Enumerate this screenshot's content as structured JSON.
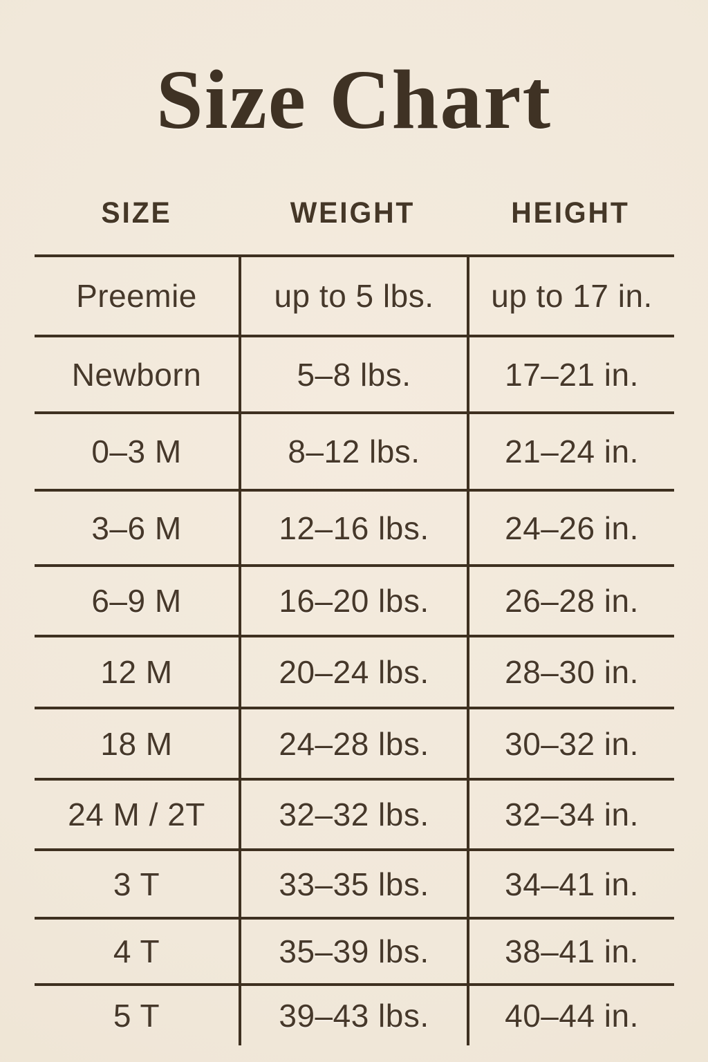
{
  "page": {
    "title": "Size Chart",
    "background_color": "#f1e8da",
    "ink_color": "#46382a",
    "line_color": "#3e3020"
  },
  "chart_data": {
    "type": "table",
    "title": "Size Chart",
    "columns": [
      "SIZE",
      "WEIGHT",
      "HEIGHT"
    ],
    "rows": [
      [
        "Preemie",
        "up to 5 lbs.",
        "up to 17 in."
      ],
      [
        "Newborn",
        "5–8 lbs.",
        "17–21 in."
      ],
      [
        "0–3 M",
        "8–12 lbs.",
        "21–24 in."
      ],
      [
        "3–6 M",
        "12–16 lbs.",
        "24–26 in."
      ],
      [
        "6–9 M",
        "16–20 lbs.",
        "26–28 in."
      ],
      [
        "12 M",
        "20–24 lbs.",
        "28–30 in."
      ],
      [
        "18 M",
        "24–28 lbs.",
        "30–32 in."
      ],
      [
        "24 M / 2T",
        "32–32 lbs.",
        "32–34 in."
      ],
      [
        "3 T",
        "33–35 lbs.",
        "34–41 in."
      ],
      [
        "4 T",
        "35–39 lbs.",
        "38–41 in."
      ],
      [
        "5 T",
        "39–43 lbs.",
        "40–44 in."
      ]
    ],
    "layout": {
      "grid": "horizontal rules between all rows, vertical rules between columns only, no outer border, no rule below last row"
    }
  }
}
